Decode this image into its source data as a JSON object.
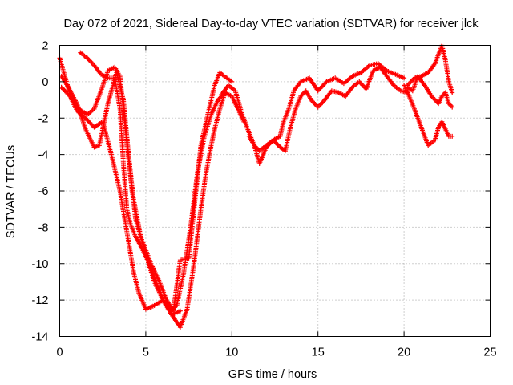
{
  "chart_data": {
    "type": "scatter",
    "title": "Day 072 of 2021, Sidereal Day-to-day VTEC variation (SDTVAR) for receiver jlck",
    "xlabel": "GPS time / hours",
    "ylabel": "SDTVAR / TECUs",
    "xlim": [
      0,
      25
    ],
    "ylim": [
      -14,
      2
    ],
    "xticks": [
      0,
      5,
      10,
      15,
      20,
      25
    ],
    "yticks": [
      -14,
      -12,
      -10,
      -8,
      -6,
      -4,
      -2,
      0,
      2
    ],
    "grid": true,
    "legend": "none",
    "marker": "+",
    "series_color": "#ff0000",
    "series": [
      {
        "name": "track-1",
        "x": [
          0.0,
          0.3,
          0.7,
          1.0,
          1.5,
          2.0,
          2.5,
          3.0,
          3.5,
          4.0,
          4.3,
          4.6,
          5.0,
          5.5,
          6.0,
          6.5,
          7.0
        ],
        "y": [
          1.3,
          0.3,
          -1.0,
          -1.6,
          -2.0,
          -2.5,
          -2.2,
          -4.0,
          -6.0,
          -8.8,
          -10.5,
          -11.6,
          -12.5,
          -12.3,
          -12.0,
          -12.8,
          -12.6
        ]
      },
      {
        "name": "track-2",
        "x": [
          0.1,
          0.5,
          1.0,
          1.5,
          2.0,
          2.3,
          2.8,
          3.3,
          3.7,
          4.0,
          4.4,
          5.0,
          5.5,
          6.0,
          6.5,
          7.0,
          7.4,
          7.8,
          8.2,
          8.5,
          8.8,
          9.0,
          9.3,
          9.6
        ],
        "y": [
          0.3,
          -0.3,
          -1.2,
          -2.6,
          -3.6,
          -3.5,
          -1.2,
          0.5,
          -1.0,
          -4.0,
          -7.5,
          -9.5,
          -11.0,
          -12.0,
          -12.8,
          -13.5,
          -12.5,
          -10.0,
          -7.0,
          -5.0,
          -3.5,
          -2.6,
          -1.5,
          -0.6
        ]
      },
      {
        "name": "track-3",
        "x": [
          0.1,
          0.6,
          1.1,
          1.6,
          2.0,
          2.4,
          2.8,
          3.2,
          3.5,
          3.8,
          4.2,
          4.7,
          5.3,
          5.8,
          6.2,
          6.6,
          7.0,
          7.5,
          7.8,
          8.2,
          8.6,
          9.0,
          9.3,
          9.7,
          10.0
        ],
        "y": [
          -0.3,
          -0.8,
          -1.5,
          -1.8,
          -1.5,
          -0.5,
          0.6,
          0.8,
          0.3,
          -2.5,
          -6.0,
          -8.5,
          -10.0,
          -11.0,
          -12.0,
          -12.6,
          -9.8,
          -9.7,
          -7.0,
          -3.5,
          -1.8,
          -0.2,
          0.5,
          0.2,
          0.0
        ]
      },
      {
        "name": "track-4",
        "x": [
          1.2,
          1.6,
          2.0,
          2.4,
          2.8,
          3.2,
          3.5,
          3.7,
          3.9,
          4.1,
          4.4,
          4.8,
          5.2,
          5.6,
          6.0,
          6.4,
          6.8,
          7.2,
          7.6,
          8.0,
          8.4,
          8.8,
          9.2,
          9.6,
          10.0,
          10.4,
          10.7
        ],
        "y": [
          1.6,
          1.3,
          0.9,
          0.4,
          0.2,
          0.2,
          -1.5,
          -4.5,
          -7.0,
          -7.8,
          -8.5,
          -9.2,
          -10.0,
          -11.0,
          -12.0,
          -12.6,
          -12.3,
          -10.5,
          -8.0,
          -5.0,
          -3.0,
          -1.8,
          -1.0,
          -0.6,
          -0.8,
          -1.6,
          -2.2
        ]
      },
      {
        "name": "track-5",
        "x": [
          9.4,
          9.8,
          10.2,
          10.6,
          11.0,
          11.3,
          11.6,
          12.0,
          12.4,
          12.8,
          13.1,
          13.4,
          13.7,
          14.0,
          14.3,
          14.6,
          15.0,
          15.4,
          15.8,
          16.2,
          16.6,
          17.0,
          17.4,
          17.8,
          18.2,
          18.6,
          19.0,
          19.4,
          19.8,
          20.2
        ],
        "y": [
          -0.7,
          -0.2,
          -0.5,
          -1.8,
          -2.8,
          -3.5,
          -3.8,
          -3.5,
          -3.2,
          -3.6,
          -3.8,
          -2.5,
          -1.5,
          -0.8,
          -0.5,
          -1.0,
          -1.4,
          -1.0,
          -0.5,
          -0.6,
          -0.8,
          -0.3,
          0.0,
          -0.4,
          0.6,
          0.8,
          0.3,
          -0.2,
          -0.5,
          -0.6
        ]
      },
      {
        "name": "track-6",
        "x": [
          11.0,
          11.3,
          11.6,
          12.0,
          12.4,
          12.8,
          13.0,
          13.3,
          13.6,
          14.0,
          14.5,
          15.0,
          15.5,
          16.0,
          16.5,
          17.0,
          17.5,
          18.0,
          18.5,
          19.0,
          19.5,
          20.0
        ],
        "y": [
          -3.0,
          -3.5,
          -4.5,
          -3.6,
          -3.2,
          -3.0,
          -2.2,
          -1.5,
          -0.5,
          0.0,
          0.2,
          -0.5,
          0.0,
          0.2,
          -0.1,
          0.3,
          0.5,
          0.9,
          1.0,
          0.6,
          0.4,
          0.2
        ]
      },
      {
        "name": "track-7",
        "x": [
          20.0,
          20.3,
          20.6,
          21.0,
          21.4,
          21.8,
          22.0,
          22.2,
          22.4,
          22.6,
          22.8
        ],
        "y": [
          -0.2,
          -0.8,
          -1.5,
          -2.5,
          -3.5,
          -3.2,
          -2.5,
          -2.2,
          -2.6,
          -3.0,
          -3.0
        ]
      },
      {
        "name": "track-8",
        "x": [
          20.2,
          20.5,
          20.8,
          21.2,
          21.6,
          22.0,
          22.2,
          22.4,
          22.6,
          22.8
        ],
        "y": [
          -0.3,
          -0.5,
          0.3,
          -0.2,
          -0.8,
          -1.2,
          -0.8,
          -0.6,
          -1.2,
          -1.4
        ]
      },
      {
        "name": "track-9",
        "x": [
          20.2,
          20.6,
          21.0,
          21.4,
          21.8,
          22.0,
          22.2,
          22.4,
          22.6,
          22.8
        ],
        "y": [
          -0.2,
          0.2,
          0.3,
          0.5,
          1.0,
          1.5,
          2.0,
          1.2,
          0.0,
          -0.6
        ]
      }
    ]
  }
}
